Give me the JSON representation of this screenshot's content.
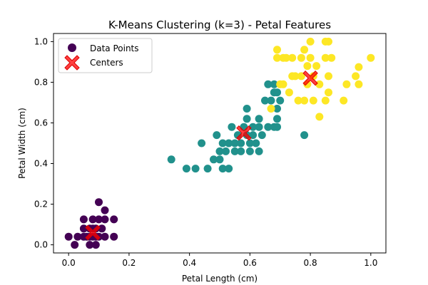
{
  "chart_data": {
    "type": "scatter",
    "title": "K-Means Clustering (k=3) - Petal Features",
    "xlabel": "Petal Length (cm)",
    "ylabel": "Petal Width (cm)",
    "xlim": [
      -0.05,
      1.05
    ],
    "ylim": [
      -0.04,
      1.04
    ],
    "xticks": [
      0.0,
      0.2,
      0.4,
      0.6,
      0.8,
      1.0
    ],
    "yticks": [
      0.0,
      0.2,
      0.4,
      0.6,
      0.8,
      1.0
    ],
    "xtick_labels": [
      "0.0",
      "0.2",
      "0.4",
      "0.6",
      "0.8",
      "1.0"
    ],
    "ytick_labels": [
      "0.0",
      "0.2",
      "0.4",
      "0.6",
      "0.8",
      "1.0"
    ],
    "grid": false,
    "legend_position": "top-left",
    "legend": [
      {
        "label": "Data Points",
        "marker": "circle",
        "color": "#440154"
      },
      {
        "label": "Centers",
        "marker": "x",
        "color": "#ff0000"
      }
    ],
    "cluster_colors": [
      "#440154",
      "#21918c",
      "#fde725"
    ],
    "series": [
      {
        "cluster": 0,
        "color": "#440154",
        "points": [
          [
            0.0,
            0.04
          ],
          [
            0.02,
            0.0
          ],
          [
            0.03,
            0.04
          ],
          [
            0.05,
            0.04
          ],
          [
            0.05,
            0.08
          ],
          [
            0.05,
            0.125
          ],
          [
            0.06,
            0.04
          ],
          [
            0.07,
            0.0
          ],
          [
            0.07,
            0.04
          ],
          [
            0.07,
            0.08
          ],
          [
            0.08,
            0.04
          ],
          [
            0.08,
            0.08
          ],
          [
            0.08,
            0.125
          ],
          [
            0.09,
            0.0
          ],
          [
            0.09,
            0.04
          ],
          [
            0.09,
            0.08
          ],
          [
            0.1,
            0.125
          ],
          [
            0.1,
            0.21
          ],
          [
            0.1,
            0.04
          ],
          [
            0.11,
            0.08
          ],
          [
            0.12,
            0.04
          ],
          [
            0.12,
            0.125
          ],
          [
            0.12,
            0.17
          ],
          [
            0.15,
            0.125
          ],
          [
            0.15,
            0.04
          ]
        ]
      },
      {
        "cluster": 1,
        "color": "#21918c",
        "points": [
          [
            0.34,
            0.42
          ],
          [
            0.39,
            0.375
          ],
          [
            0.42,
            0.375
          ],
          [
            0.44,
            0.5
          ],
          [
            0.46,
            0.375
          ],
          [
            0.48,
            0.42
          ],
          [
            0.49,
            0.54
          ],
          [
            0.5,
            0.42
          ],
          [
            0.5,
            0.46
          ],
          [
            0.51,
            0.5
          ],
          [
            0.51,
            0.375
          ],
          [
            0.52,
            0.46
          ],
          [
            0.53,
            0.375
          ],
          [
            0.53,
            0.5
          ],
          [
            0.54,
            0.58
          ],
          [
            0.55,
            0.46
          ],
          [
            0.55,
            0.5
          ],
          [
            0.56,
            0.54
          ],
          [
            0.57,
            0.46
          ],
          [
            0.57,
            0.5
          ],
          [
            0.58,
            0.58
          ],
          [
            0.59,
            0.54
          ],
          [
            0.59,
            0.62
          ],
          [
            0.59,
            0.67
          ],
          [
            0.6,
            0.5
          ],
          [
            0.6,
            0.46
          ],
          [
            0.61,
            0.54
          ],
          [
            0.61,
            0.58
          ],
          [
            0.62,
            0.5
          ],
          [
            0.63,
            0.62
          ],
          [
            0.63,
            0.58
          ],
          [
            0.63,
            0.46
          ],
          [
            0.64,
            0.54
          ],
          [
            0.65,
            0.71
          ],
          [
            0.66,
            0.79
          ],
          [
            0.66,
            0.58
          ],
          [
            0.67,
            0.71
          ],
          [
            0.68,
            0.79
          ],
          [
            0.68,
            0.58
          ],
          [
            0.68,
            0.75
          ],
          [
            0.69,
            0.67
          ],
          [
            0.69,
            0.75
          ],
          [
            0.69,
            0.62
          ],
          [
            0.69,
            0.58
          ],
          [
            0.7,
            0.71
          ],
          [
            0.78,
            0.54
          ]
        ]
      },
      {
        "cluster": 2,
        "color": "#fde725",
        "points": [
          [
            0.67,
            0.67
          ],
          [
            0.69,
            0.92
          ],
          [
            0.69,
            0.96
          ],
          [
            0.7,
            0.79
          ],
          [
            0.71,
            0.92
          ],
          [
            0.71,
            0.79
          ],
          [
            0.72,
            0.92
          ],
          [
            0.73,
            0.75
          ],
          [
            0.74,
            0.92
          ],
          [
            0.74,
            0.83
          ],
          [
            0.75,
            0.83
          ],
          [
            0.76,
            0.71
          ],
          [
            0.77,
            0.83
          ],
          [
            0.77,
            0.92
          ],
          [
            0.78,
            0.96
          ],
          [
            0.78,
            0.71
          ],
          [
            0.79,
            0.79
          ],
          [
            0.79,
            0.88
          ],
          [
            0.8,
            0.92
          ],
          [
            0.8,
            1.0
          ],
          [
            0.81,
            0.83
          ],
          [
            0.81,
            0.71
          ],
          [
            0.82,
            0.88
          ],
          [
            0.83,
            0.79
          ],
          [
            0.83,
            0.63
          ],
          [
            0.85,
            0.92
          ],
          [
            0.85,
            1.0
          ],
          [
            0.85,
            0.71
          ],
          [
            0.86,
            0.83
          ],
          [
            0.86,
            0.75
          ],
          [
            0.86,
            1.0
          ],
          [
            0.87,
            0.92
          ],
          [
            0.91,
            0.71
          ],
          [
            0.92,
            0.79
          ],
          [
            0.95,
            0.83
          ],
          [
            0.96,
            0.79
          ],
          [
            0.96,
            0.875
          ],
          [
            1.0,
            0.92
          ]
        ]
      }
    ],
    "centers": [
      {
        "cluster": 0,
        "x": 0.08,
        "y": 0.06
      },
      {
        "cluster": 1,
        "x": 0.58,
        "y": 0.55
      },
      {
        "cluster": 2,
        "x": 0.8,
        "y": 0.82
      }
    ]
  }
}
